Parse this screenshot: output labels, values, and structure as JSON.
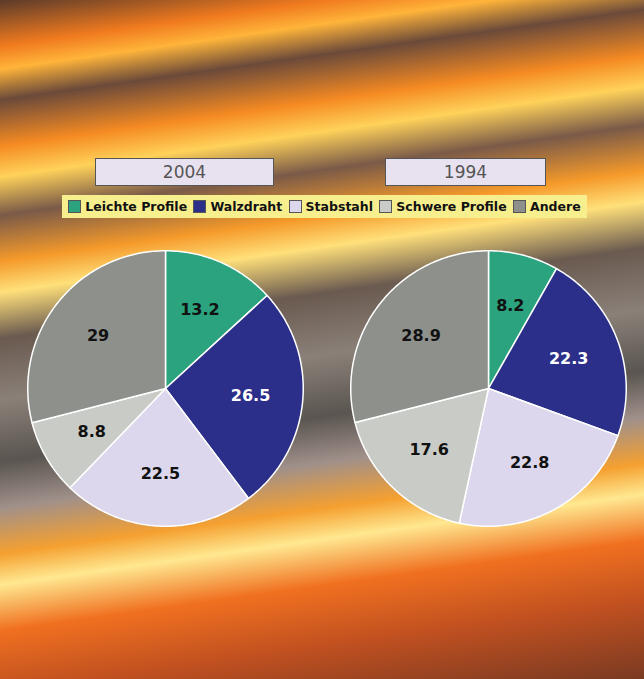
{
  "chart_data": [
    {
      "type": "pie",
      "title": "2004",
      "categories": [
        "Leichte Profile",
        "Walzdraht",
        "Stabstahl",
        "Schwere Profile",
        "Andere"
      ],
      "values": [
        13.2,
        26.5,
        22.5,
        8.8,
        29
      ],
      "colors": [
        "#2aa37e",
        "#2b2f8a",
        "#dcd7ec",
        "#c9cbc6",
        "#8e908b"
      ],
      "data_labels": true,
      "legend": "top"
    },
    {
      "type": "pie",
      "title": "1994",
      "categories": [
        "Leichte Profile",
        "Walzdraht",
        "Stabstahl",
        "Schwere Profile",
        "Andere"
      ],
      "values": [
        8.2,
        22.3,
        22.8,
        17.6,
        28.9
      ],
      "colors": [
        "#2aa37e",
        "#2b2f8a",
        "#dcd7ec",
        "#c9cbc6",
        "#8e908b"
      ],
      "data_labels": true,
      "legend": "top"
    }
  ]
}
